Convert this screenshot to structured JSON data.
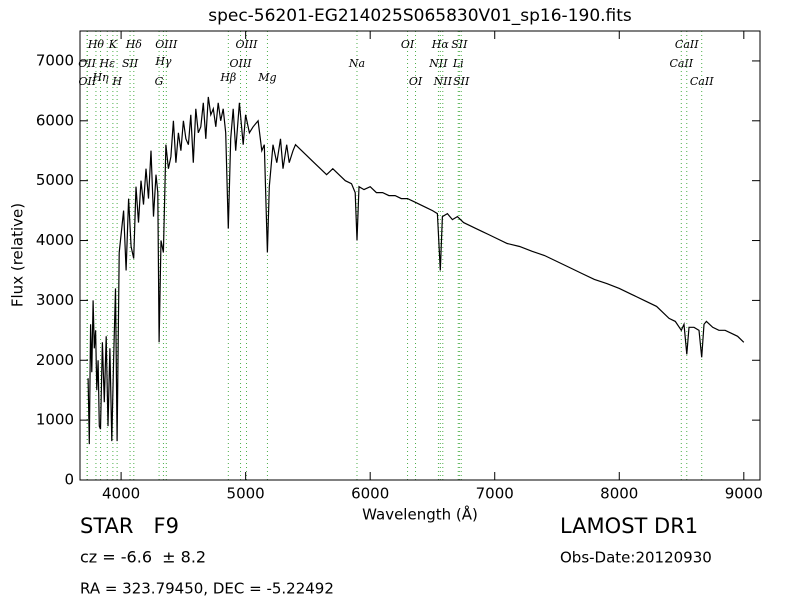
{
  "chart_data": {
    "type": "line",
    "title": "spec-56201-EG214025S065830V01_sp16-190.fits",
    "xlabel": "Wavelength (Å)",
    "ylabel": "Flux (relative)",
    "xlim": [
      3670,
      9130
    ],
    "ylim": [
      0,
      7500
    ],
    "xticks": [
      4000,
      5000,
      6000,
      7000,
      8000,
      9000
    ],
    "yticks": [
      0,
      1000,
      2000,
      3000,
      4000,
      5000,
      6000,
      7000
    ],
    "color": "#000000",
    "annotation_color": "#4daf4a",
    "x": [
      3735,
      3745,
      3755,
      3765,
      3775,
      3785,
      3795,
      3805,
      3815,
      3825,
      3835,
      3850,
      3865,
      3880,
      3895,
      3910,
      3925,
      3940,
      3955,
      3968,
      3985,
      4000,
      4020,
      4040,
      4060,
      4080,
      4101,
      4120,
      4140,
      4160,
      4180,
      4200,
      4220,
      4240,
      4260,
      4280,
      4295,
      4305,
      4320,
      4340,
      4360,
      4380,
      4400,
      4420,
      4440,
      4460,
      4480,
      4500,
      4520,
      4540,
      4560,
      4580,
      4600,
      4620,
      4640,
      4660,
      4680,
      4700,
      4720,
      4740,
      4760,
      4780,
      4800,
      4820,
      4840,
      4861,
      4880,
      4900,
      4920,
      4950,
      4980,
      5000,
      5030,
      5060,
      5100,
      5130,
      5150,
      5175,
      5190,
      5220,
      5250,
      5280,
      5300,
      5330,
      5350,
      5380,
      5400,
      5450,
      5500,
      5550,
      5600,
      5650,
      5700,
      5750,
      5800,
      5850,
      5880,
      5894,
      5910,
      5950,
      6000,
      6050,
      6100,
      6150,
      6200,
      6250,
      6300,
      6350,
      6400,
      6450,
      6500,
      6540,
      6563,
      6580,
      6620,
      6660,
      6700,
      6750,
      6800,
      6850,
      6900,
      6950,
      7000,
      7100,
      7200,
      7300,
      7400,
      7500,
      7600,
      7700,
      7800,
      7900,
      8000,
      8100,
      8200,
      8300,
      8400,
      8450,
      8498,
      8520,
      8542,
      8560,
      8600,
      8640,
      8662,
      8680,
      8700,
      8750,
      8800,
      8850,
      8900,
      8950,
      9000
    ],
    "values": [
      1700,
      600,
      2600,
      1800,
      3000,
      2200,
      2500,
      1500,
      2000,
      900,
      850,
      2300,
      1300,
      2400,
      900,
      2200,
      650,
      2000,
      3200,
      650,
      3800,
      4100,
      4500,
      3500,
      4700,
      3900,
      3700,
      4900,
      4300,
      5000,
      4600,
      5200,
      4700,
      5500,
      4400,
      5100,
      4800,
      2300,
      4000,
      3800,
      5600,
      5200,
      5400,
      6000,
      5300,
      5800,
      5500,
      6000,
      5700,
      5600,
      6100,
      5300,
      6200,
      5800,
      5900,
      6300,
      5700,
      6400,
      6100,
      6200,
      5900,
      6300,
      6000,
      6200,
      5800,
      4200,
      5700,
      6200,
      5500,
      6300,
      5600,
      6100,
      5800,
      5900,
      6000,
      5500,
      5600,
      3800,
      4900,
      5600,
      5300,
      5700,
      5200,
      5600,
      5300,
      5500,
      5600,
      5500,
      5400,
      5300,
      5200,
      5100,
      5200,
      5100,
      5000,
      4950,
      4800,
      4000,
      4900,
      4850,
      4900,
      4800,
      4800,
      4750,
      4750,
      4700,
      4700,
      4650,
      4600,
      4550,
      4500,
      4450,
      3500,
      4400,
      4450,
      4350,
      4400,
      4300,
      4250,
      4200,
      4150,
      4100,
      4050,
      3950,
      3900,
      3820,
      3750,
      3650,
      3550,
      3450,
      3350,
      3280,
      3200,
      3100,
      3000,
      2900,
      2700,
      2650,
      2500,
      2600,
      2100,
      2550,
      2550,
      2500,
      2050,
      2600,
      2650,
      2550,
      2500,
      2500,
      2450,
      2400,
      2300
    ],
    "annotations": [
      {
        "label": "OII",
        "x": 3727
      },
      {
        "label": "OII",
        "x": 3729
      },
      {
        "label": "Hθ",
        "x": 3798
      },
      {
        "label": "Hη",
        "x": 3835
      },
      {
        "label": "Hε",
        "x": 3889
      },
      {
        "label": "K",
        "x": 3934
      },
      {
        "label": "H",
        "x": 3968
      },
      {
        "label": "SII",
        "x": 4072
      },
      {
        "label": "Hδ",
        "x": 4102
      },
      {
        "label": "G",
        "x": 4305
      },
      {
        "label": "Hγ",
        "x": 4340
      },
      {
        "label": "OIII",
        "x": 4363
      },
      {
        "label": "Hβ",
        "x": 4861
      },
      {
        "label": "OIII",
        "x": 4959
      },
      {
        "label": "OIII",
        "x": 5007
      },
      {
        "label": "Mg",
        "x": 5175
      },
      {
        "label": "Na",
        "x": 5894
      },
      {
        "label": "OI",
        "x": 6300
      },
      {
        "label": "OI",
        "x": 6364
      },
      {
        "label": "NII",
        "x": 6548
      },
      {
        "label": "Hα",
        "x": 6563
      },
      {
        "label": "NII",
        "x": 6583
      },
      {
        "label": "Li",
        "x": 6707
      },
      {
        "label": "SII",
        "x": 6716
      },
      {
        "label": "SII",
        "x": 6731
      },
      {
        "label": "CaII",
        "x": 8498
      },
      {
        "label": "CaII",
        "x": 8542
      },
      {
        "label": "CaII",
        "x": 8662
      }
    ],
    "object_class": "STAR   F9",
    "redshift": "cz = -6.6  ± 8.2",
    "coordinates": "RA = 323.79450, DEC = -5.22492",
    "survey": "LAMOST DR1",
    "obs_date": "Obs-Date:20120930"
  }
}
